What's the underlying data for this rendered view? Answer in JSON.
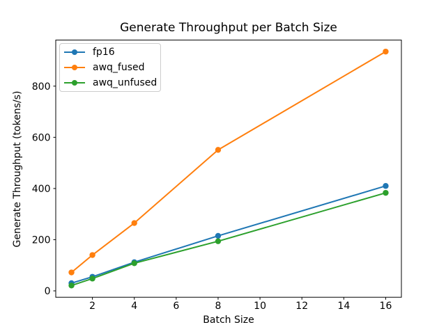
{
  "window": {
    "background_color": "#ffffff"
  },
  "chart_data": {
    "type": "line",
    "title": "Generate Throughput per Batch Size",
    "xlabel": "Batch Size",
    "ylabel": "Generate Throughput (tokens/s)",
    "x": [
      1,
      2,
      4,
      8,
      16
    ],
    "series": [
      {
        "name": "fp16",
        "color": "#1f77b4",
        "values": [
          30,
          55,
          112,
          215,
          410
        ]
      },
      {
        "name": "awq_fused",
        "color": "#ff7f0e",
        "values": [
          72,
          140,
          265,
          551,
          935
        ]
      },
      {
        "name": "awq_unfused",
        "color": "#2ca02c",
        "values": [
          21,
          48,
          108,
          194,
          383
        ]
      }
    ],
    "xticks": [
      2,
      4,
      6,
      8,
      10,
      12,
      14,
      16
    ],
    "yticks": [
      0,
      200,
      400,
      600,
      800
    ],
    "xlim": [
      0.25,
      16.75
    ],
    "ylim": [
      -25,
      980
    ],
    "grid": false,
    "legend_position": "upper left",
    "marker": "circle",
    "line_width": 2,
    "marker_radius": 4.2,
    "axis_color": "#000000"
  }
}
